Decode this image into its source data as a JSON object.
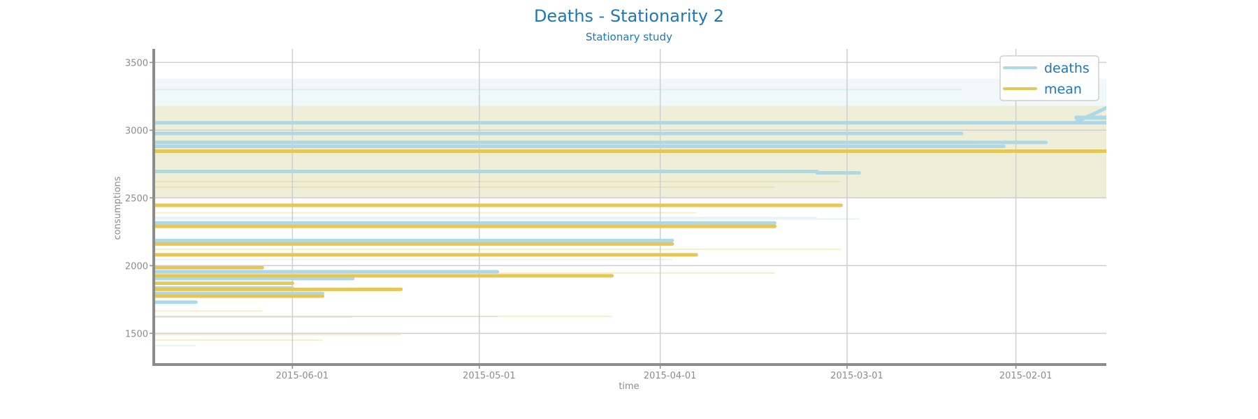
{
  "colors": {
    "deaths": "#add8e6",
    "mean": "#e6c656",
    "text": "#1f77b4",
    "axis": "#8c8c8c",
    "grid": "#cfcfcf"
  },
  "chart_data": {
    "type": "line",
    "title": "Deaths - Stationarity 2",
    "subtitle": "Stationary study",
    "xlabel": "time",
    "ylabel": "consumptions",
    "x_axis": "reversed date axis",
    "x_range": [
      "2015-06-24",
      "2015-01-17"
    ],
    "xticks": [
      "2015-06-01",
      "2015-05-01",
      "2015-04-01",
      "2015-03-01",
      "2015-02-01"
    ],
    "ylim": [
      1270,
      3600
    ],
    "yticks": [
      1500,
      2000,
      2500,
      3000,
      3500
    ],
    "grid": true,
    "legend": "top-right",
    "legend_entries": [
      "deaths",
      "mean"
    ],
    "series": [
      {
        "name": "deaths",
        "segments": [
          {
            "x1": "2015-06-24",
            "x2": "2015-01-17",
            "y": 3055
          },
          {
            "x1": "2015-06-24",
            "x2": "2015-02-10",
            "y": 2975
          },
          {
            "x1": "2015-06-24",
            "x2": "2015-01-27",
            "y": 2910
          },
          {
            "x1": "2015-06-24",
            "x2": "2015-02-03",
            "y": 2880
          },
          {
            "x1": "2015-06-24",
            "x2": "2015-03-06",
            "y": 2695
          },
          {
            "x1": "2015-03-06",
            "x2": "2015-02-27",
            "y": 2685
          },
          {
            "x1": "2015-06-24",
            "x2": "2015-03-13",
            "y": 2315
          },
          {
            "x1": "2015-06-24",
            "x2": "2015-03-30",
            "y": 2185
          },
          {
            "x1": "2015-06-24",
            "x2": "2015-04-28",
            "y": 1955
          },
          {
            "x1": "2015-06-24",
            "x2": "2015-05-22",
            "y": 1905
          },
          {
            "x1": "2015-06-24",
            "x2": "2015-06-01",
            "y": 1835
          },
          {
            "x1": "2015-06-24",
            "x2": "2015-05-27",
            "y": 1795
          },
          {
            "x1": "2015-06-24",
            "x2": "2015-06-17",
            "y": 1730
          },
          {
            "x1": "2015-01-22",
            "x2": "2015-01-17",
            "y": 3090
          },
          {
            "x1": "2015-01-22",
            "x2": "2015-01-17",
            "y": 3095
          }
        ]
      },
      {
        "name": "mean",
        "segments": [
          {
            "x1": "2015-06-24",
            "x2": "2015-01-17",
            "y": 2845
          },
          {
            "x1": "2015-06-24",
            "x2": "2015-03-02",
            "y": 2445
          },
          {
            "x1": "2015-06-24",
            "x2": "2015-03-13",
            "y": 2290
          },
          {
            "x1": "2015-06-24",
            "x2": "2015-03-30",
            "y": 2160
          },
          {
            "x1": "2015-06-24",
            "x2": "2015-03-26",
            "y": 2080
          },
          {
            "x1": "2015-06-24",
            "x2": "2015-06-06",
            "y": 1985
          },
          {
            "x1": "2015-06-24",
            "x2": "2015-04-09",
            "y": 1925
          },
          {
            "x1": "2015-06-24",
            "x2": "2015-06-01",
            "y": 1870
          },
          {
            "x1": "2015-06-24",
            "x2": "2015-05-14",
            "y": 1825
          },
          {
            "x1": "2015-06-24",
            "x2": "2015-05-27",
            "y": 1775
          }
        ]
      }
    ],
    "bands": [
      {
        "series": "deaths",
        "y_low": 2500,
        "y_high": 3380
      },
      {
        "series": "mean",
        "y_low": 2500,
        "y_high": 3180
      }
    ],
    "faint_segments": [
      {
        "series": "deaths",
        "x1": "2015-06-24",
        "x2": "2015-02-10",
        "y": 3300
      },
      {
        "series": "deaths",
        "x1": "2015-06-24",
        "x2": "2015-03-06",
        "y": 2355
      },
      {
        "series": "deaths",
        "x1": "2015-06-24",
        "x2": "2015-02-27",
        "y": 2345
      },
      {
        "series": "deaths",
        "x1": "2015-06-24",
        "x2": "2015-03-30",
        "y": 2045
      },
      {
        "series": "deaths",
        "x1": "2015-06-24",
        "x2": "2015-05-22",
        "y": 1620
      },
      {
        "series": "deaths",
        "x1": "2015-06-24",
        "x2": "2015-04-28",
        "y": 1625
      },
      {
        "series": "deaths",
        "x1": "2015-06-24",
        "x2": "2015-06-17",
        "y": 1410
      },
      {
        "series": "mean",
        "x1": "2015-06-24",
        "x2": "2015-03-02",
        "y": 2620
      },
      {
        "series": "mean",
        "x1": "2015-06-24",
        "x2": "2015-03-13",
        "y": 2580
      },
      {
        "series": "mean",
        "x1": "2015-06-24",
        "x2": "2015-03-26",
        "y": 2390
      },
      {
        "series": "mean",
        "x1": "2015-06-24",
        "x2": "2015-03-02",
        "y": 2120
      },
      {
        "series": "mean",
        "x1": "2015-06-24",
        "x2": "2015-03-13",
        "y": 1945
      },
      {
        "series": "mean",
        "x1": "2015-06-24",
        "x2": "2015-04-09",
        "y": 1625
      },
      {
        "series": "mean",
        "x1": "2015-06-24",
        "x2": "2015-05-14",
        "y": 1490
      },
      {
        "series": "mean",
        "x1": "2015-06-24",
        "x2": "2015-05-27",
        "y": 1450
      },
      {
        "series": "mean",
        "x1": "2015-06-24",
        "x2": "2015-06-06",
        "y": 1665
      }
    ]
  }
}
